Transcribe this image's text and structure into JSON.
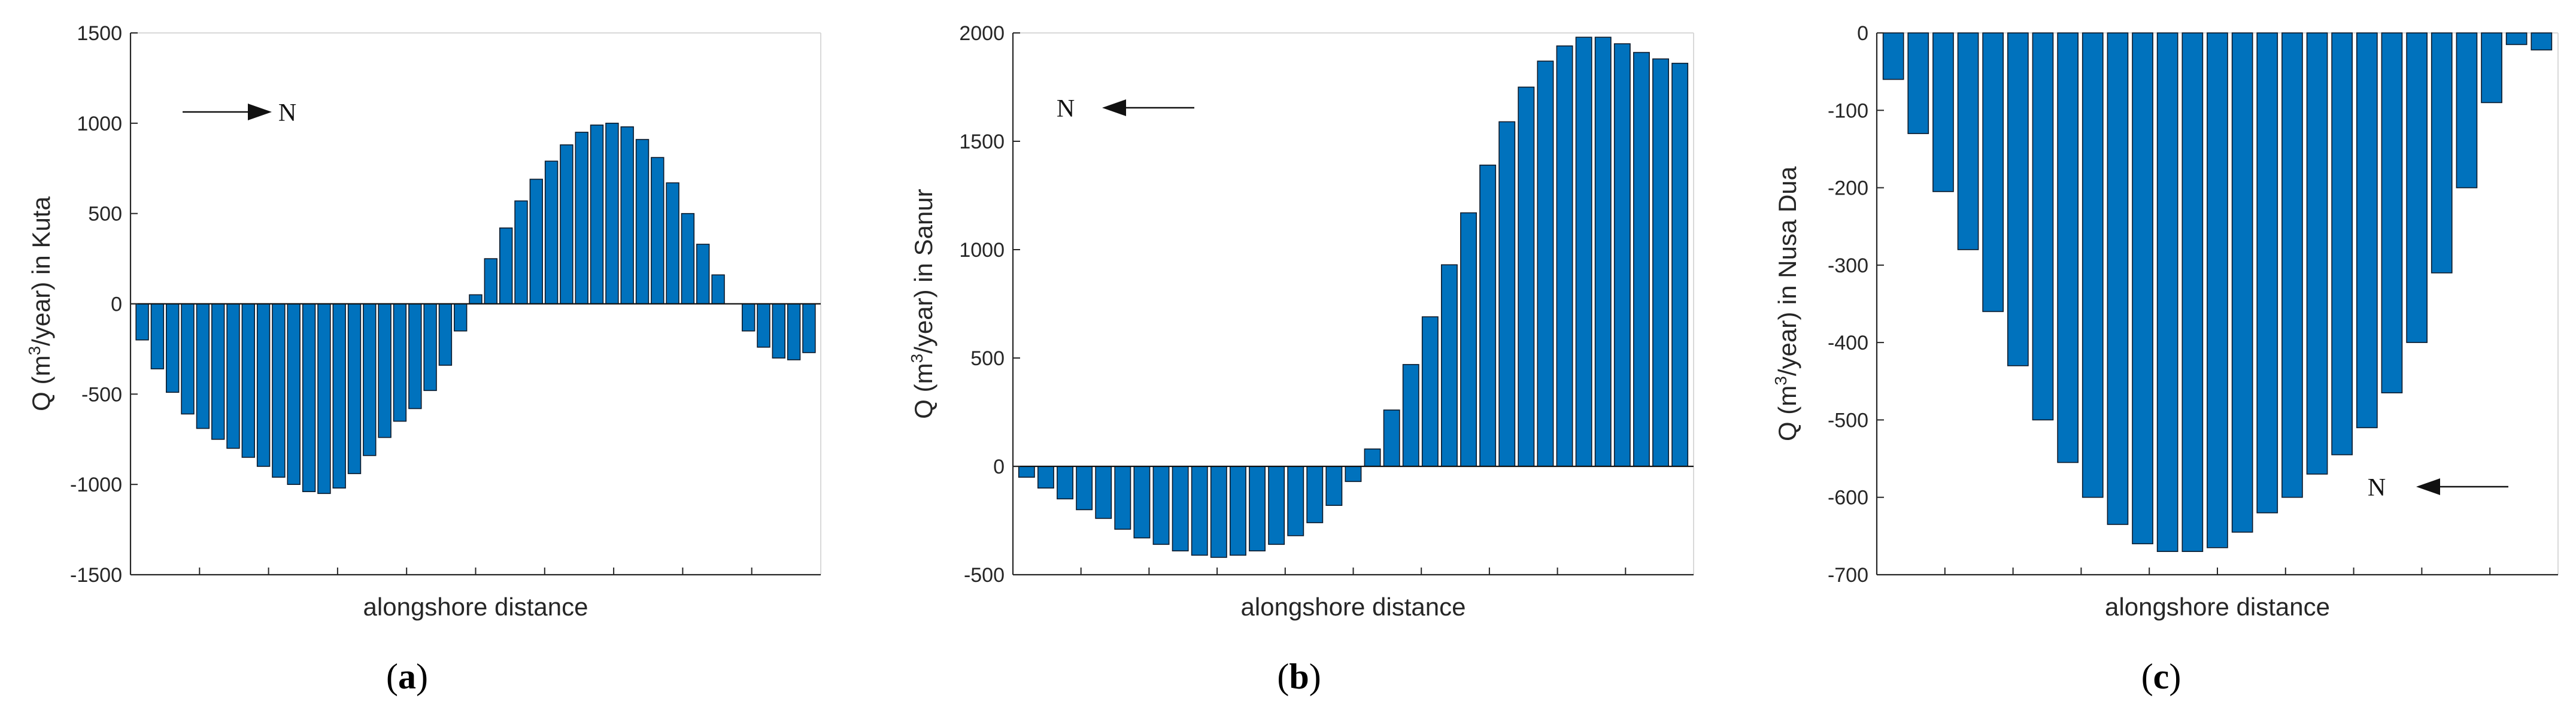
{
  "chart_data": [
    {
      "type": "bar",
      "panel_label": "a",
      "xlabel": "alongshore distance",
      "ylabel_prefix": "Q (m",
      "ylabel_sup": "3",
      "ylabel_suffix": "/year) in Kuta",
      "ylim": [
        -1500,
        1500
      ],
      "yticks": [
        "1500",
        "1000",
        "500",
        "0",
        "-500",
        "-1000",
        "-1500"
      ],
      "ytick_values": [
        1500,
        1000,
        500,
        0,
        -500,
        -1000,
        -1500
      ],
      "annotation": {
        "label": "N",
        "direction": "right"
      },
      "bar_color": "#0072BD",
      "values": [
        -200,
        -360,
        -490,
        -610,
        -690,
        -750,
        -800,
        -850,
        -900,
        -960,
        -1000,
        -1040,
        -1050,
        -1020,
        -940,
        -840,
        -740,
        -650,
        -580,
        -480,
        -340,
        -150,
        50,
        250,
        420,
        570,
        690,
        790,
        880,
        950,
        990,
        1000,
        980,
        910,
        810,
        670,
        500,
        330,
        160,
        0,
        -150,
        -240,
        -300,
        -310,
        -270
      ]
    },
    {
      "type": "bar",
      "panel_label": "b",
      "xlabel": "alongshore distance",
      "ylabel_prefix": "Q (m",
      "ylabel_sup": "3",
      "ylabel_suffix": "/year) in Sanur",
      "ylim": [
        -500,
        2000
      ],
      "yticks": [
        "2000",
        "1500",
        "1000",
        "500",
        "0",
        "-500"
      ],
      "ytick_values": [
        2000,
        1500,
        1000,
        500,
        0,
        -500
      ],
      "annotation": {
        "label": "N",
        "direction": "left"
      },
      "bar_color": "#0072BD",
      "values": [
        -50,
        -100,
        -150,
        -200,
        -240,
        -290,
        -330,
        -360,
        -390,
        -410,
        -420,
        -410,
        -390,
        -360,
        -320,
        -260,
        -180,
        -70,
        80,
        260,
        470,
        690,
        930,
        1170,
        1390,
        1590,
        1750,
        1870,
        1940,
        1980,
        1980,
        1950,
        1910,
        1880,
        1860
      ]
    },
    {
      "type": "bar",
      "panel_label": "c",
      "xlabel": "alongshore distance",
      "ylabel_prefix": "Q (m",
      "ylabel_sup": "3",
      "ylabel_suffix": "/year) in Nusa Dua",
      "ylim": [
        -700,
        0
      ],
      "yticks": [
        "0",
        "-100",
        "-200",
        "-300",
        "-400",
        "-500",
        "-600",
        "-700"
      ],
      "ytick_values": [
        0,
        -100,
        -200,
        -300,
        -400,
        -500,
        -600,
        -700
      ],
      "annotation": {
        "label": "N",
        "direction": "left"
      },
      "bar_color": "#0072BD",
      "values": [
        -60,
        -130,
        -205,
        -280,
        -360,
        -430,
        -500,
        -555,
        -600,
        -635,
        -660,
        -670,
        -670,
        -665,
        -645,
        -620,
        -600,
        -570,
        -545,
        -510,
        -465,
        -400,
        -310,
        -200,
        -90,
        -15,
        -22
      ]
    }
  ]
}
